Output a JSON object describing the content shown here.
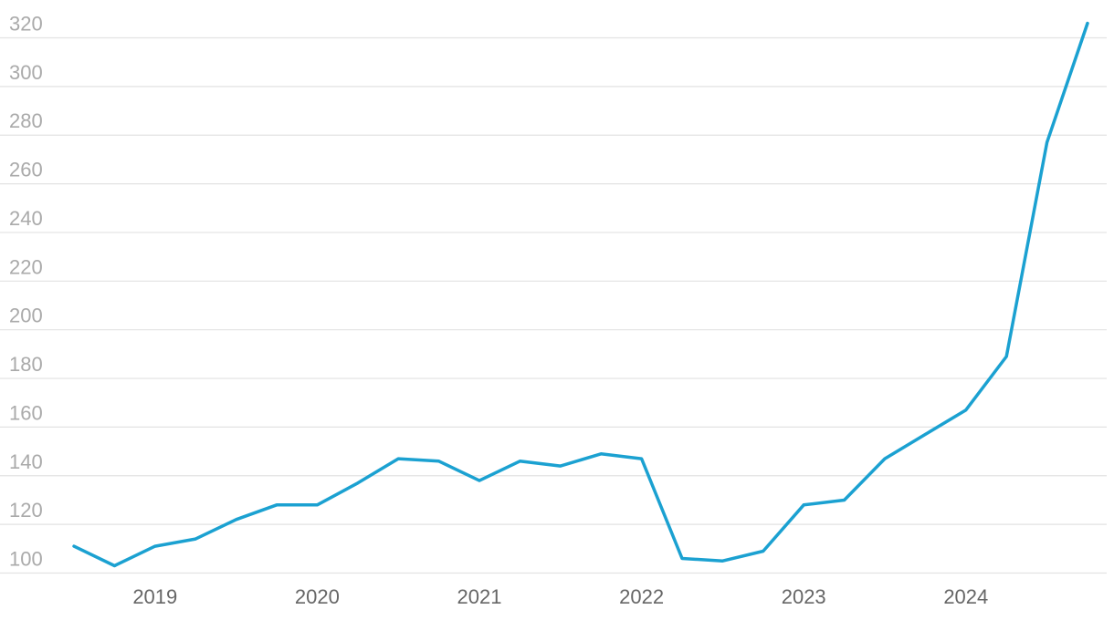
{
  "chart_data": {
    "type": "line",
    "title": "",
    "xlabel": "",
    "ylabel": "",
    "ylim": [
      100,
      320
    ],
    "y_ticks": [
      100,
      120,
      140,
      160,
      180,
      200,
      220,
      240,
      260,
      280,
      300,
      320
    ],
    "x_ticks": [
      "2019",
      "2020",
      "2021",
      "2022",
      "2023",
      "2024"
    ],
    "grid": true,
    "legend": "none",
    "x": [
      "2018-Q3",
      "2018-Q4",
      "2019-Q1",
      "2019-Q2",
      "2019-Q3",
      "2019-Q4",
      "2020-Q1",
      "2020-Q2",
      "2020-Q3",
      "2020-Q4",
      "2021-Q1",
      "2021-Q2",
      "2021-Q3",
      "2021-Q4",
      "2022-Q1",
      "2022-Q2",
      "2022-Q3",
      "2022-Q4",
      "2023-Q1",
      "2023-Q2",
      "2023-Q3",
      "2023-Q4",
      "2024-Q1",
      "2024-Q2",
      "2024-Q3",
      "2024-Q4"
    ],
    "series": [
      {
        "color": "#1ba1d1",
        "values": [
          111,
          103,
          111,
          114,
          122,
          128,
          128,
          137,
          147,
          146,
          138,
          146,
          144,
          149,
          147,
          106,
          105,
          109,
          128,
          130,
          147,
          157,
          167,
          189,
          277,
          326
        ]
      }
    ]
  }
}
